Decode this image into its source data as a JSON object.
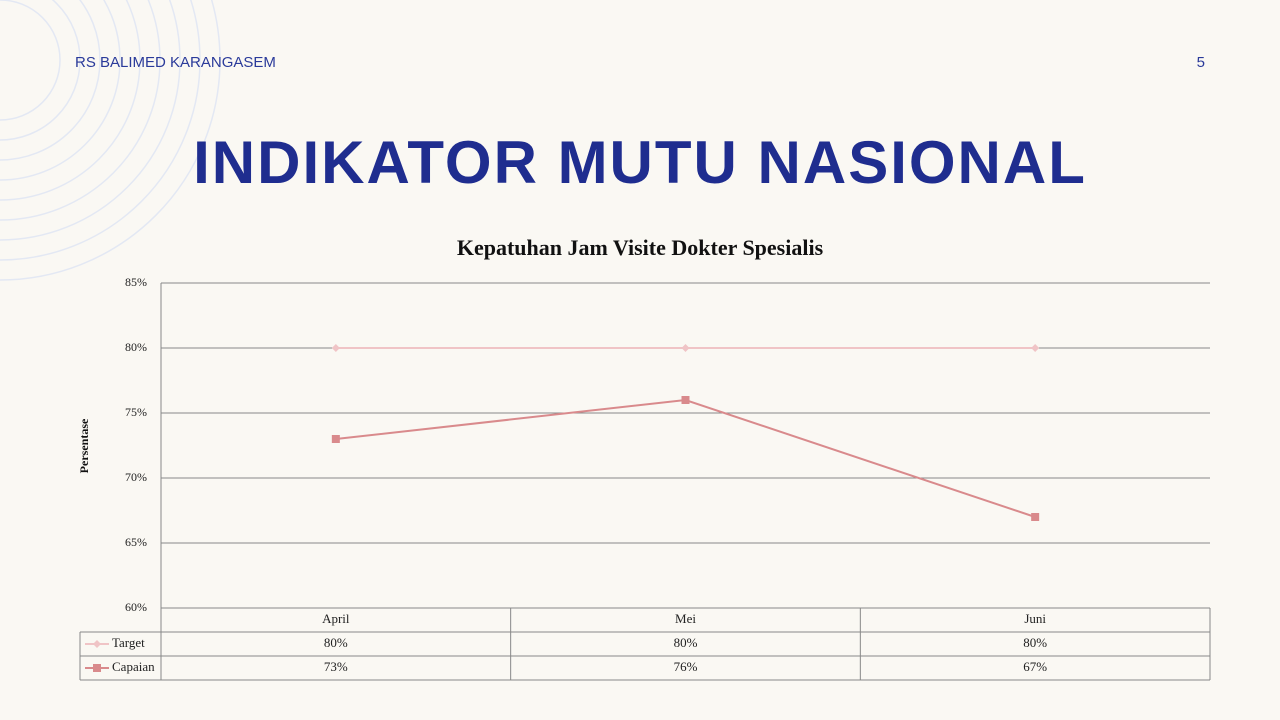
{
  "header": {
    "organization": "RS BALIMED KARANGASEM",
    "page_number": "5",
    "title": "INDIKATOR MUTU NASIONAL"
  },
  "chart_data": {
    "type": "line",
    "title": "Kepatuhan Jam Visite Dokter Spesialis",
    "y_label": "Persentase",
    "categories": [
      "April",
      "Mei",
      "Juni"
    ],
    "series": [
      {
        "name": "Target",
        "color": "#f0c4c6",
        "marker": "diamond",
        "values": [
          80,
          80,
          80
        ],
        "value_labels": [
          "80%",
          "80%",
          "80%"
        ]
      },
      {
        "name": "Capaian",
        "color": "#d98a8c",
        "marker": "square",
        "values": [
          73,
          76,
          67
        ],
        "value_labels": [
          "73%",
          "76%",
          "67%"
        ]
      }
    ],
    "ylim": [
      60,
      85
    ],
    "yticks": [
      {
        "value": 60,
        "label": "60%"
      },
      {
        "value": 65,
        "label": "65%"
      },
      {
        "value": 70,
        "label": "70%"
      },
      {
        "value": 75,
        "label": "75%"
      },
      {
        "value": 80,
        "label": "80%"
      },
      {
        "value": 85,
        "label": "85%"
      }
    ],
    "grid": true,
    "data_table": true
  }
}
